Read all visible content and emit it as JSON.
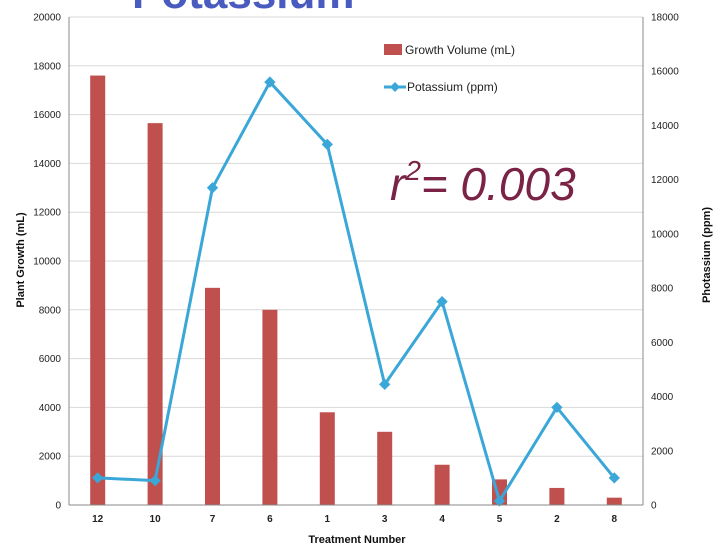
{
  "colors": {
    "bar": "#c0504d",
    "line": "#3aa7d8",
    "title": "#4a5bbf",
    "annotation": "#7a2346",
    "grid": "#d9d9d9",
    "axis": "#888888"
  },
  "slide_title": "Potassium",
  "annotation": {
    "base": "r",
    "sup": "2",
    "rest": "= 0.003"
  },
  "chart_data": {
    "type": "bar",
    "categories": [
      "12",
      "10",
      "7",
      "6",
      "1",
      "3",
      "4",
      "5",
      "2",
      "8"
    ],
    "xlabel": "Treatment Number",
    "ylabel": "Plant Growth (mL)",
    "y2label": "Photassium (ppm)",
    "ylim": [
      0,
      20000
    ],
    "y2lim": [
      0,
      18000
    ],
    "yticks": [
      "0",
      "2000",
      "4000",
      "6000",
      "8000",
      "10000",
      "12000",
      "14000",
      "16000",
      "18000",
      "20000"
    ],
    "y2ticks": [
      "0",
      "2000",
      "4000",
      "6000",
      "8000",
      "10000",
      "12000",
      "14000",
      "16000",
      "18000"
    ],
    "grid": "horizontal",
    "legend_position": "top-right",
    "series": [
      {
        "name": "Growth Volume (mL)",
        "kind": "bar",
        "axis": "left",
        "values": [
          17600,
          15650,
          8900,
          8000,
          3800,
          3000,
          1650,
          1050,
          700,
          300
        ]
      },
      {
        "name": "Potassium (ppm)",
        "kind": "line",
        "axis": "right",
        "values": [
          1000,
          900,
          11700,
          15600,
          13300,
          4450,
          7500,
          150,
          3600,
          1000
        ]
      }
    ]
  }
}
